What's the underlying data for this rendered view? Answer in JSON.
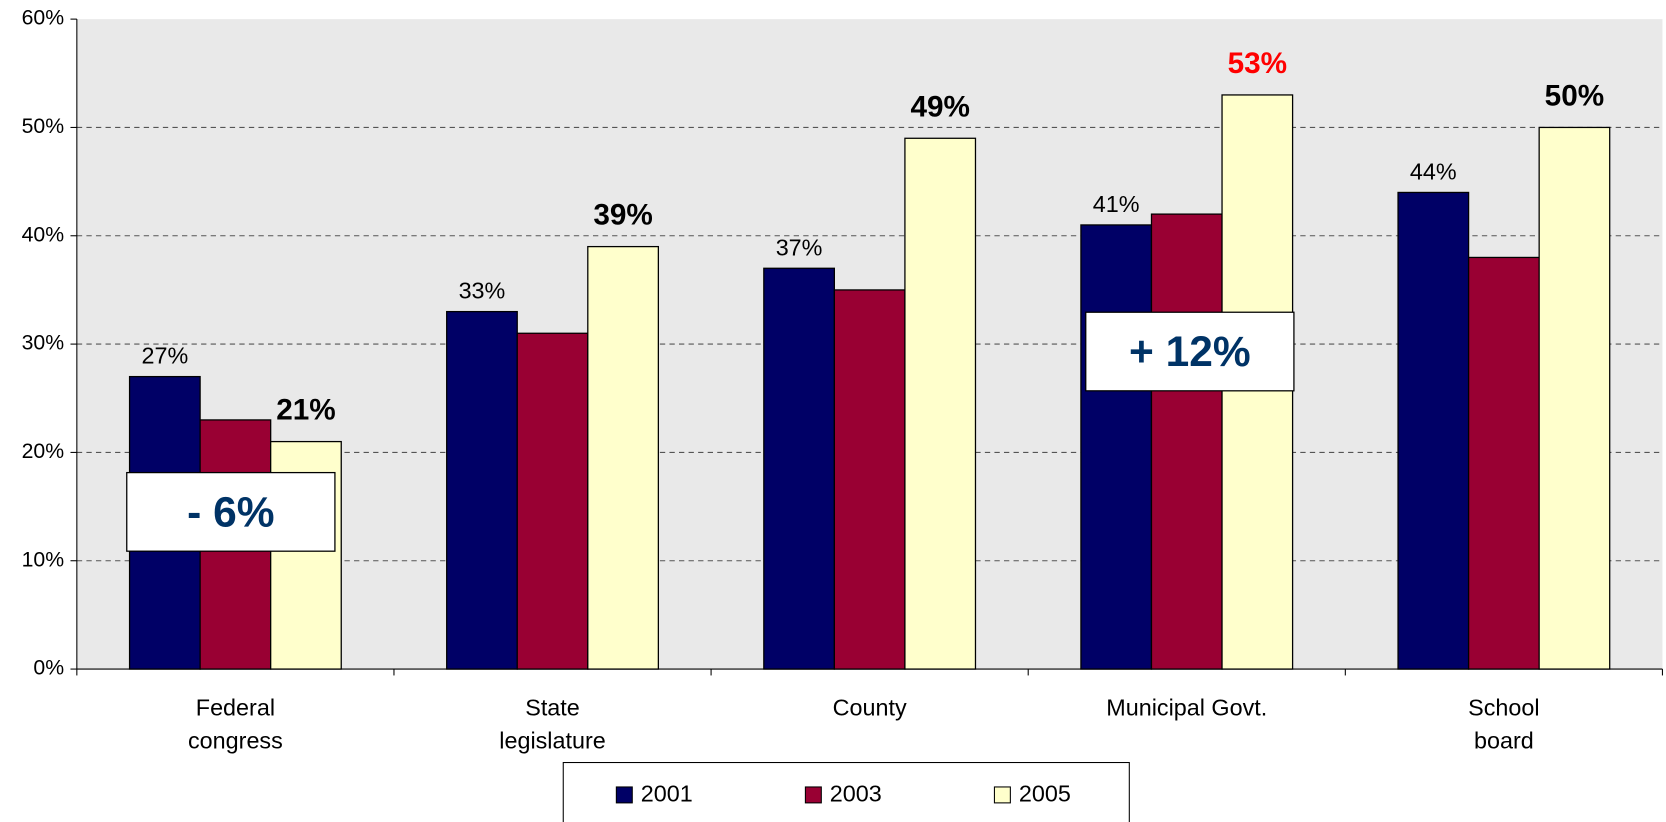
{
  "chart_data": {
    "type": "bar",
    "categories": [
      "Federal\ncongress",
      "State\nlegislature",
      "County",
      "Municipal Govt.",
      "School\nboard"
    ],
    "series": [
      {
        "name": "2001",
        "color": "#000066",
        "values": [
          27,
          33,
          37,
          41,
          44
        ],
        "value_labels": [
          "27%",
          "33%",
          "37%",
          "41%",
          "44%"
        ],
        "value_label_bold": false,
        "value_label_colors": [
          "#000000",
          "#000000",
          "#000000",
          "#000000",
          "#000000"
        ]
      },
      {
        "name": "2003",
        "color": "#990033",
        "values": [
          23,
          31,
          35,
          42,
          38
        ]
      },
      {
        "name": "2005",
        "color": "#ffffcc",
        "values": [
          21,
          39,
          49,
          53,
          50
        ],
        "value_labels": [
          "21%",
          "39%",
          "49%",
          "53%",
          "50%"
        ],
        "value_label_bold": true,
        "value_label_colors": [
          "#000000",
          "#000000",
          "#000000",
          "#ff0000",
          "#000000"
        ]
      }
    ],
    "ylim": [
      0,
      60
    ],
    "yticks": [
      {
        "value": 0,
        "label": "0%"
      },
      {
        "value": 10,
        "label": "10%"
      },
      {
        "value": 20,
        "label": "20%"
      },
      {
        "value": 30,
        "label": "30%"
      },
      {
        "value": 40,
        "label": "40%"
      },
      {
        "value": 50,
        "label": "50%"
      },
      {
        "value": 60,
        "label": "60%"
      }
    ],
    "grid": true,
    "legend": "bottom",
    "annotations": [
      "- 6%",
      "+ 12%"
    ]
  }
}
